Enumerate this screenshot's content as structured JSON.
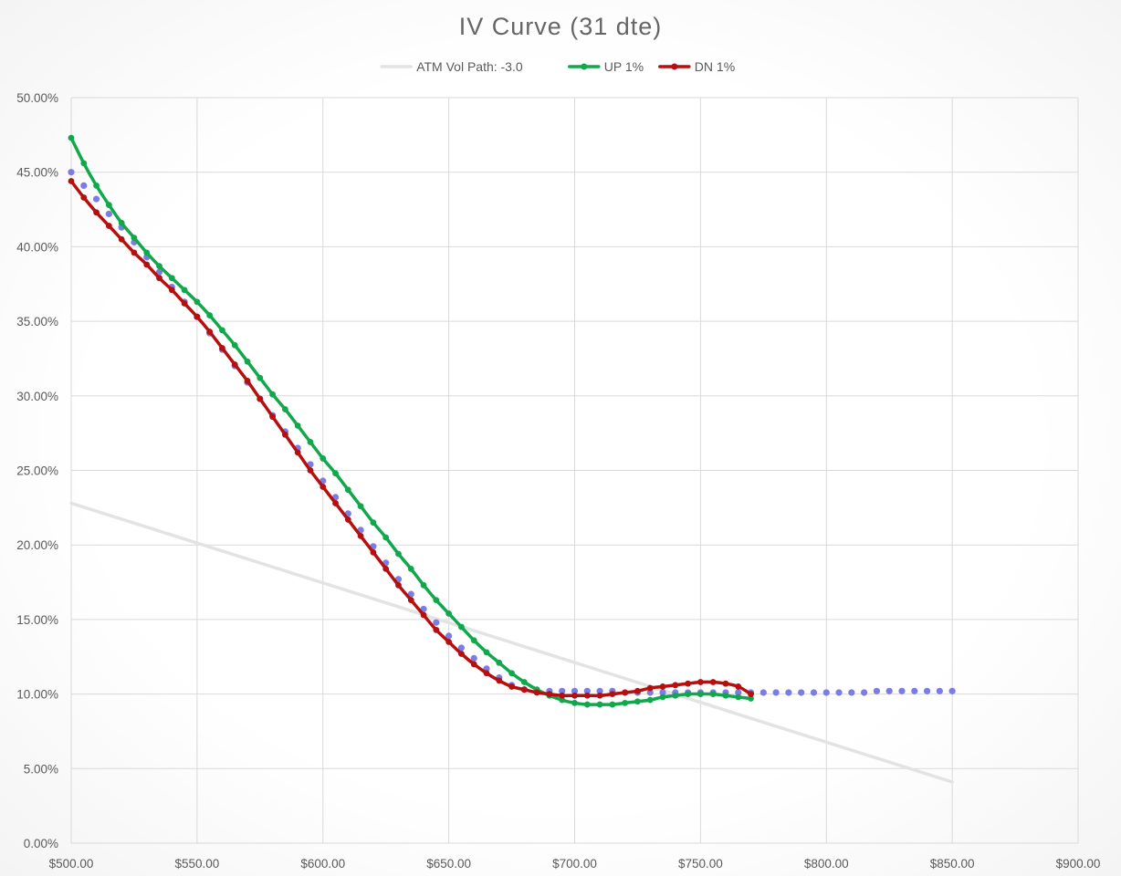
{
  "chart_data": {
    "type": "line",
    "title": "IV Curve  (31 dte)",
    "xlabel": "",
    "ylabel": "",
    "xlim": [
      500,
      900
    ],
    "ylim": [
      0,
      50
    ],
    "x_ticks": [
      500,
      550,
      600,
      650,
      700,
      750,
      800,
      850,
      900
    ],
    "x_tick_labels": [
      "$500.00",
      "$550.00",
      "$600.00",
      "$650.00",
      "$700.00",
      "$750.00",
      "$800.00",
      "$850.00",
      "$900.00"
    ],
    "y_ticks": [
      0,
      5,
      10,
      15,
      20,
      25,
      30,
      35,
      40,
      45,
      50
    ],
    "y_tick_labels": [
      "0.00%",
      "5.00%",
      "10.00%",
      "15.00%",
      "20.00%",
      "25.00%",
      "30.00%",
      "35.00%",
      "40.00%",
      "45.00%",
      "50.00%"
    ],
    "grid": true,
    "legend_position": "top-center",
    "series": [
      {
        "name": "ATM Vol Path: -3.0",
        "color": "#e3e3e3",
        "style": "line",
        "in_legend": true,
        "points": [
          [
            500,
            22.8
          ],
          [
            850,
            4.1
          ]
        ]
      },
      {
        "name": "",
        "color": "#7b7de3",
        "style": "dots",
        "in_legend": false,
        "points": [
          [
            500,
            45.0
          ],
          [
            505,
            44.1
          ],
          [
            510,
            43.2
          ],
          [
            515,
            42.2
          ],
          [
            520,
            41.3
          ],
          [
            525,
            40.3
          ],
          [
            530,
            39.3
          ],
          [
            535,
            38.3
          ],
          [
            540,
            37.3
          ],
          [
            545,
            36.3
          ],
          [
            550,
            35.3
          ],
          [
            555,
            34.2
          ],
          [
            560,
            33.1
          ],
          [
            565,
            32.0
          ],
          [
            570,
            30.9
          ],
          [
            575,
            29.8
          ],
          [
            580,
            28.7
          ],
          [
            585,
            27.6
          ],
          [
            590,
            26.5
          ],
          [
            595,
            25.4
          ],
          [
            600,
            24.3
          ],
          [
            605,
            23.2
          ],
          [
            610,
            22.1
          ],
          [
            615,
            21.0
          ],
          [
            620,
            19.9
          ],
          [
            625,
            18.8
          ],
          [
            630,
            17.7
          ],
          [
            635,
            16.7
          ],
          [
            640,
            15.7
          ],
          [
            645,
            14.8
          ],
          [
            650,
            13.9
          ],
          [
            655,
            13.1
          ],
          [
            660,
            12.4
          ],
          [
            665,
            11.7
          ],
          [
            670,
            11.1
          ],
          [
            675,
            10.6
          ],
          [
            680,
            10.3
          ],
          [
            685,
            10.2
          ],
          [
            690,
            10.2
          ],
          [
            695,
            10.2
          ],
          [
            700,
            10.2
          ],
          [
            705,
            10.2
          ],
          [
            710,
            10.2
          ],
          [
            715,
            10.2
          ],
          [
            720,
            10.1
          ],
          [
            725,
            10.1
          ],
          [
            730,
            10.1
          ],
          [
            735,
            10.1
          ],
          [
            740,
            10.1
          ],
          [
            745,
            10.1
          ],
          [
            750,
            10.1
          ],
          [
            755,
            10.1
          ],
          [
            760,
            10.1
          ],
          [
            765,
            10.1
          ],
          [
            770,
            10.1
          ],
          [
            775,
            10.1
          ],
          [
            780,
            10.1
          ],
          [
            785,
            10.1
          ],
          [
            790,
            10.1
          ],
          [
            795,
            10.1
          ],
          [
            800,
            10.1
          ],
          [
            805,
            10.1
          ],
          [
            810,
            10.1
          ],
          [
            815,
            10.1
          ],
          [
            820,
            10.2
          ],
          [
            825,
            10.2
          ],
          [
            830,
            10.2
          ],
          [
            835,
            10.2
          ],
          [
            840,
            10.2
          ],
          [
            845,
            10.2
          ],
          [
            850,
            10.2
          ]
        ]
      },
      {
        "name": "UP 1%",
        "color": "#10a84b",
        "style": "line-dots",
        "in_legend": true,
        "points": [
          [
            500,
            47.3
          ],
          [
            505,
            45.6
          ],
          [
            510,
            44.1
          ],
          [
            515,
            42.8
          ],
          [
            520,
            41.6
          ],
          [
            525,
            40.6
          ],
          [
            530,
            39.6
          ],
          [
            535,
            38.7
          ],
          [
            540,
            37.9
          ],
          [
            545,
            37.1
          ],
          [
            550,
            36.3
          ],
          [
            555,
            35.4
          ],
          [
            560,
            34.4
          ],
          [
            565,
            33.4
          ],
          [
            570,
            32.3
          ],
          [
            575,
            31.2
          ],
          [
            580,
            30.1
          ],
          [
            585,
            29.1
          ],
          [
            590,
            28.0
          ],
          [
            595,
            26.9
          ],
          [
            600,
            25.8
          ],
          [
            605,
            24.8
          ],
          [
            610,
            23.7
          ],
          [
            615,
            22.6
          ],
          [
            620,
            21.5
          ],
          [
            625,
            20.5
          ],
          [
            630,
            19.4
          ],
          [
            635,
            18.4
          ],
          [
            640,
            17.3
          ],
          [
            645,
            16.3
          ],
          [
            650,
            15.4
          ],
          [
            655,
            14.5
          ],
          [
            660,
            13.6
          ],
          [
            665,
            12.8
          ],
          [
            670,
            12.1
          ],
          [
            675,
            11.4
          ],
          [
            680,
            10.8
          ],
          [
            685,
            10.3
          ],
          [
            690,
            9.9
          ],
          [
            695,
            9.6
          ],
          [
            700,
            9.4
          ],
          [
            705,
            9.3
          ],
          [
            710,
            9.3
          ],
          [
            715,
            9.3
          ],
          [
            720,
            9.4
          ],
          [
            725,
            9.5
          ],
          [
            730,
            9.6
          ],
          [
            735,
            9.8
          ],
          [
            740,
            9.9
          ],
          [
            745,
            10.0
          ],
          [
            750,
            10.0
          ],
          [
            755,
            10.0
          ],
          [
            760,
            9.9
          ],
          [
            765,
            9.8
          ],
          [
            770,
            9.7
          ]
        ]
      },
      {
        "name": "DN 1%",
        "color": "#b50f0f",
        "style": "line-dots",
        "in_legend": true,
        "points": [
          [
            500,
            44.4
          ],
          [
            505,
            43.3
          ],
          [
            510,
            42.3
          ],
          [
            515,
            41.4
          ],
          [
            520,
            40.5
          ],
          [
            525,
            39.6
          ],
          [
            530,
            38.8
          ],
          [
            535,
            37.9
          ],
          [
            540,
            37.1
          ],
          [
            545,
            36.2
          ],
          [
            550,
            35.3
          ],
          [
            555,
            34.3
          ],
          [
            560,
            33.2
          ],
          [
            565,
            32.1
          ],
          [
            570,
            31.0
          ],
          [
            575,
            29.8
          ],
          [
            580,
            28.6
          ],
          [
            585,
            27.4
          ],
          [
            590,
            26.2
          ],
          [
            595,
            25.0
          ],
          [
            600,
            23.9
          ],
          [
            605,
            22.8
          ],
          [
            610,
            21.7
          ],
          [
            615,
            20.6
          ],
          [
            620,
            19.5
          ],
          [
            625,
            18.4
          ],
          [
            630,
            17.3
          ],
          [
            635,
            16.3
          ],
          [
            640,
            15.3
          ],
          [
            645,
            14.3
          ],
          [
            650,
            13.5
          ],
          [
            655,
            12.7
          ],
          [
            660,
            12.0
          ],
          [
            665,
            11.4
          ],
          [
            670,
            10.9
          ],
          [
            675,
            10.5
          ],
          [
            680,
            10.3
          ],
          [
            685,
            10.1
          ],
          [
            690,
            10.0
          ],
          [
            695,
            9.9
          ],
          [
            700,
            9.9
          ],
          [
            705,
            9.9
          ],
          [
            710,
            9.9
          ],
          [
            715,
            10.0
          ],
          [
            720,
            10.1
          ],
          [
            725,
            10.2
          ],
          [
            730,
            10.4
          ],
          [
            735,
            10.5
          ],
          [
            740,
            10.6
          ],
          [
            745,
            10.7
          ],
          [
            750,
            10.8
          ],
          [
            755,
            10.8
          ],
          [
            760,
            10.7
          ],
          [
            765,
            10.5
          ],
          [
            770,
            10.0
          ]
        ]
      }
    ]
  }
}
